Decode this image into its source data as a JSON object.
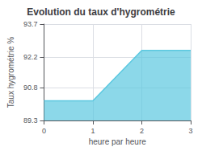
{
  "chart_data": {
    "type": "area",
    "title": "Evolution du taux d'hygrométrie",
    "xlabel": "heure par heure",
    "ylabel": "Taux hygrométrie %",
    "x": [
      0,
      1,
      2,
      3
    ],
    "values": [
      90.2,
      90.2,
      92.5,
      92.5
    ],
    "color": "#5bc8e0",
    "xlim": [
      0,
      3
    ],
    "xticks": [
      0,
      1,
      2,
      3
    ],
    "ylim": [
      89.3,
      93.7
    ],
    "yticks": [
      89.3,
      90.8,
      92.2,
      93.7
    ],
    "grid": true
  }
}
